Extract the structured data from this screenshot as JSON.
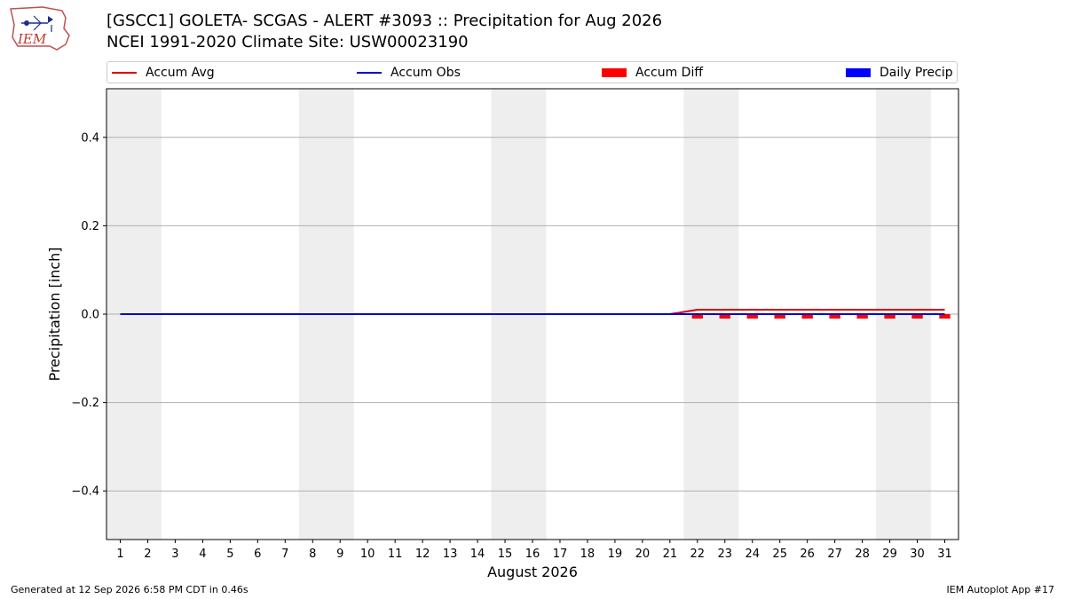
{
  "header": {
    "title_line1": "[GSCC1] GOLETA- SCGAS - ALERT #3093 :: Precipitation for Aug 2026",
    "title_line2": "NCEI 1991-2020 Climate Site: USW00023190",
    "logo_text": "IEM"
  },
  "legend": [
    {
      "label": "Accum Avg",
      "kind": "line",
      "color": "#dd0000"
    },
    {
      "label": "Accum Obs",
      "kind": "line",
      "color": "#0000cc"
    },
    {
      "label": "Accum Diff",
      "kind": "bar",
      "color": "#ff0000"
    },
    {
      "label": "Daily Precip",
      "kind": "bar",
      "color": "#0000ff"
    }
  ],
  "footer": {
    "left": "Generated at 12 Sep 2026 6:58 PM CDT in 0.46s",
    "right": "IEM Autoplot App #17"
  },
  "chart_data": {
    "type": "line",
    "xlabel": "August 2026",
    "ylabel": "Precipitation [inch]",
    "x": [
      1,
      2,
      3,
      4,
      5,
      6,
      7,
      8,
      9,
      10,
      11,
      12,
      13,
      14,
      15,
      16,
      17,
      18,
      19,
      20,
      21,
      22,
      23,
      24,
      25,
      26,
      27,
      28,
      29,
      30,
      31
    ],
    "ylim": [
      -0.51,
      0.51
    ],
    "yticks": [
      -0.4,
      -0.2,
      0.0,
      0.2,
      0.4
    ],
    "ytick_labels": [
      "−0.4",
      "−0.2",
      "0.0",
      "0.2",
      "0.4"
    ],
    "grid": "y",
    "weekend_shading": [
      [
        1,
        2
      ],
      [
        8,
        9
      ],
      [
        15,
        16
      ],
      [
        22,
        23
      ],
      [
        29,
        30
      ]
    ],
    "series": [
      {
        "name": "Accum Avg",
        "kind": "line",
        "color": "#dd0000",
        "values": [
          0,
          0,
          0,
          0,
          0,
          0,
          0,
          0,
          0,
          0,
          0,
          0,
          0,
          0,
          0,
          0,
          0,
          0,
          0,
          0,
          0,
          0.01,
          0.01,
          0.01,
          0.01,
          0.01,
          0.01,
          0.01,
          0.01,
          0.01,
          0.01
        ]
      },
      {
        "name": "Accum Obs",
        "kind": "line",
        "color": "#0000cc",
        "values": [
          0,
          0,
          0,
          0,
          0,
          0,
          0,
          0,
          0,
          0,
          0,
          0,
          0,
          0,
          0,
          0,
          0,
          0,
          0,
          0,
          0,
          0,
          0,
          0,
          0,
          0,
          0,
          0,
          0,
          0,
          0
        ]
      },
      {
        "name": "Accum Diff",
        "kind": "bar",
        "color": "#ff0000",
        "values": [
          0,
          0,
          0,
          0,
          0,
          0,
          0,
          0,
          0,
          0,
          0,
          0,
          0,
          0,
          0,
          0,
          0,
          0,
          0,
          0,
          0,
          -0.01,
          -0.01,
          -0.01,
          -0.01,
          -0.01,
          -0.01,
          -0.01,
          -0.01,
          -0.01,
          -0.01
        ]
      },
      {
        "name": "Daily Precip",
        "kind": "bar",
        "color": "#0000ff",
        "values": [
          0,
          0,
          0,
          0,
          0,
          0,
          0,
          0,
          0,
          0,
          0,
          0,
          0,
          0,
          0,
          0,
          0,
          0,
          0,
          0,
          0,
          0,
          0,
          0,
          0,
          0,
          0,
          0,
          0,
          0,
          0
        ]
      }
    ]
  }
}
